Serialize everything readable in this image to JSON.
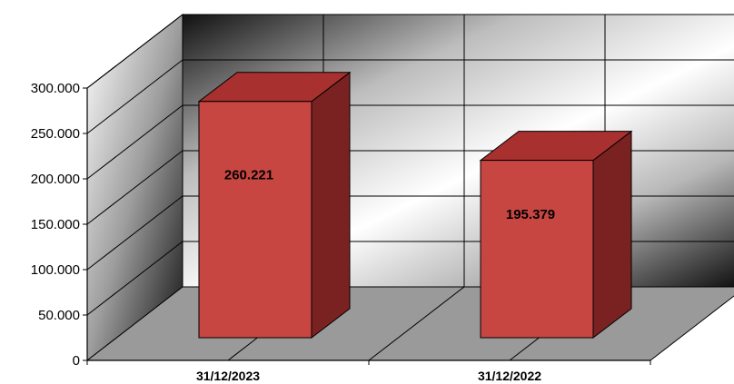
{
  "chart_data": {
    "type": "bar",
    "style": "3d-column",
    "categories": [
      "31/12/2023",
      "31/12/2022"
    ],
    "series": [
      {
        "values": [
          260221,
          195379
        ],
        "data_labels": [
          "260.221",
          "195.379"
        ]
      }
    ],
    "ylim": [
      0,
      300000
    ],
    "ytick_values": [
      0,
      50000,
      100000,
      150000,
      200000,
      250000,
      300000
    ],
    "ytick_labels": [
      "0",
      "50.000",
      "100.000",
      "150.000",
      "200.000",
      "250.000",
      "300.000"
    ],
    "grid": true,
    "legend": "none",
    "colors": {
      "bar_front": "#c84642",
      "bar_top": "#a8302e",
      "bar_side": "#7a2222",
      "floor": "#9a9a9a"
    }
  }
}
